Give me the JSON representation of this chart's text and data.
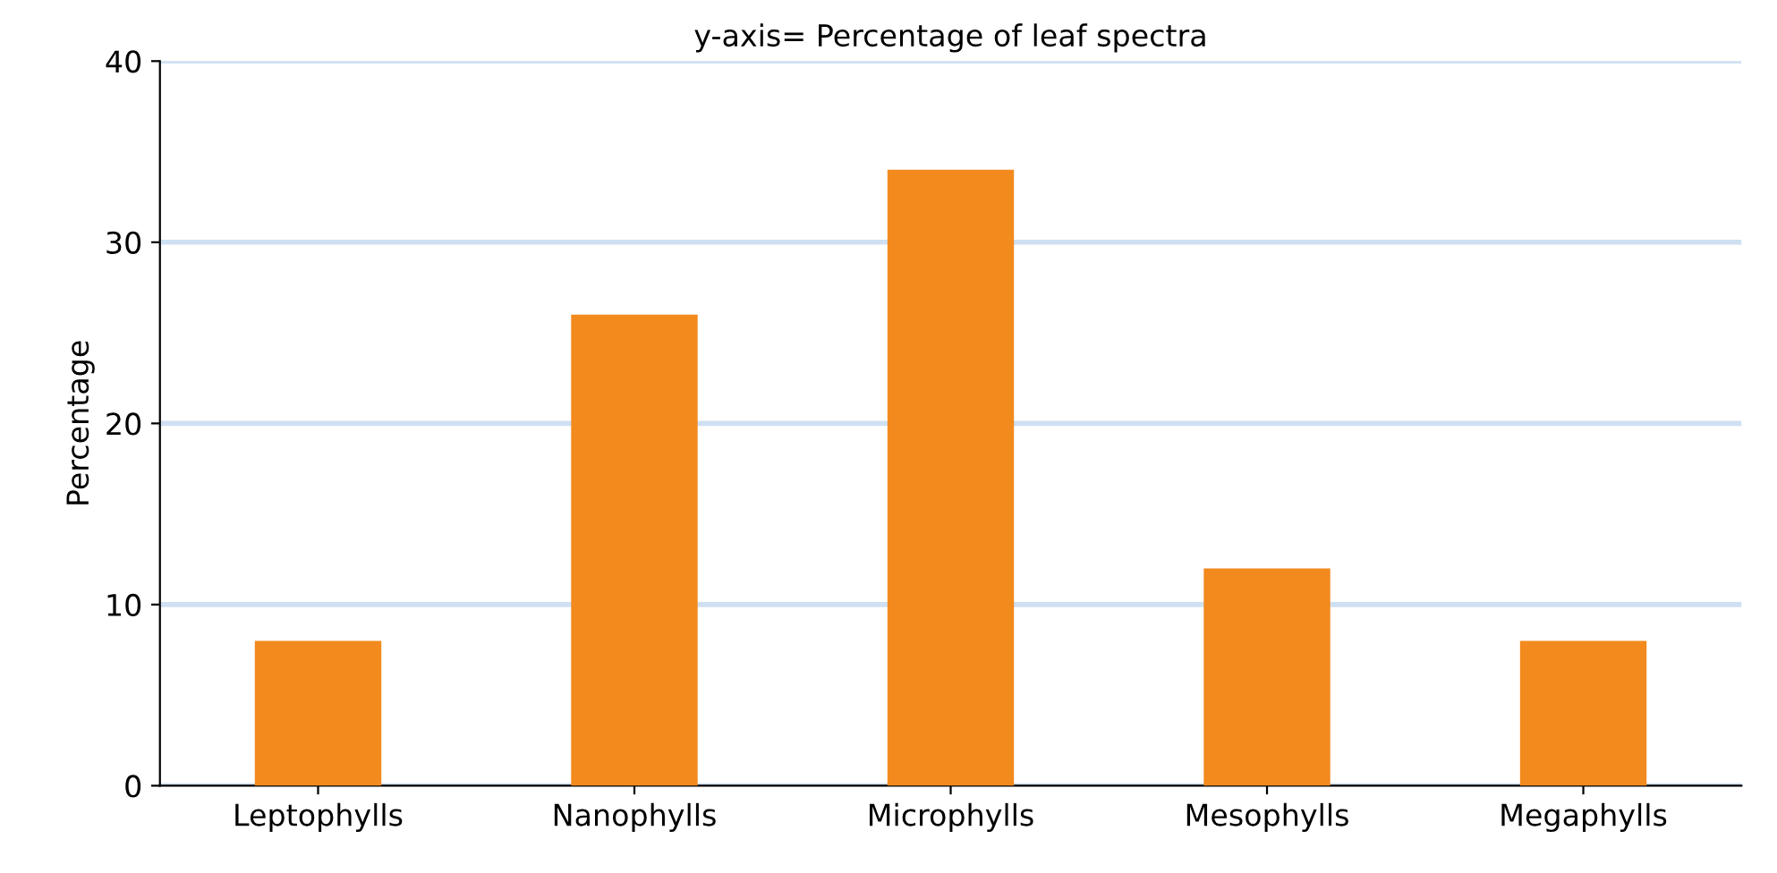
{
  "chart_data": {
    "type": "bar",
    "title": "y-axis= Percentage of leaf spectra",
    "ylabel": "Percentage",
    "categories": [
      "Leptophylls",
      "Nanophylls",
      "Microphylls",
      "Mesophylls",
      "Megaphylls"
    ],
    "values": [
      8,
      26,
      34,
      12,
      8
    ],
    "color": "#f28a1e",
    "ylim": [
      0,
      40
    ],
    "yticks": [
      0,
      10,
      20,
      30,
      40
    ],
    "grid": "y"
  }
}
